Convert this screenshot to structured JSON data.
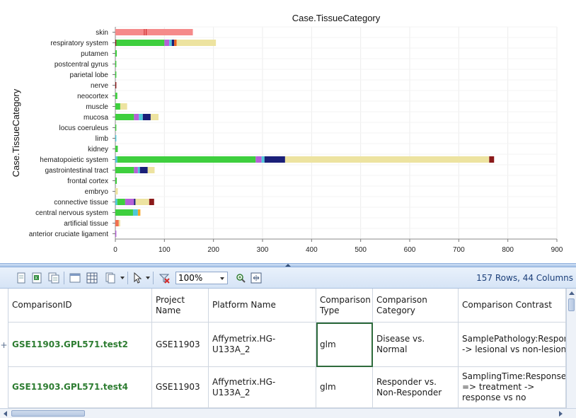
{
  "chart_data": {
    "type": "bar",
    "orientation": "horizontal",
    "stacked": true,
    "title": "Case.TissueCategory",
    "ylabel": "Case.TissueCategory",
    "xlabel": "",
    "xlim": [
      0,
      900
    ],
    "xticks": [
      0,
      100,
      200,
      300,
      400,
      500,
      600,
      700,
      800,
      900
    ],
    "grid": true,
    "legend": "none",
    "categories": [
      "skin",
      "respiratory system",
      "putamen",
      "postcentral gyrus",
      "parietal lobe",
      "nerve",
      "neocortex",
      "muscle",
      "mucosa",
      "locus coeruleus",
      "limb",
      "kidney",
      "hematopoietic system",
      "gastrointestinal tract",
      "frontal cortex",
      "embryo",
      "connective tissue",
      "central nervous system",
      "artificial tissue",
      "anterior cruciate ligament"
    ],
    "segments": [
      [
        {
          "v": 58,
          "c": "#f58a8a"
        },
        {
          "v": 2,
          "c": "#d23030"
        },
        {
          "v": 2,
          "c": "#f58a8a"
        },
        {
          "v": 2,
          "c": "#d23030"
        },
        {
          "v": 94,
          "c": "#f58a8a"
        }
      ],
      [
        {
          "v": 2,
          "c": "#8b1a1a"
        },
        {
          "v": 98,
          "c": "#3ecf3e"
        },
        {
          "v": 10,
          "c": "#b560d8"
        },
        {
          "v": 5,
          "c": "#4ec8d8"
        },
        {
          "v": 5,
          "c": "#1a1f78"
        },
        {
          "v": 5,
          "c": "#e8601c"
        },
        {
          "v": 80,
          "c": "#ede3a0"
        }
      ],
      [
        {
          "v": 3,
          "c": "#3ecf3e"
        }
      ],
      [
        {
          "v": 2,
          "c": "#3ecf3e"
        }
      ],
      [
        {
          "v": 2,
          "c": "#3ecf3e"
        }
      ],
      [
        {
          "v": 2,
          "c": "#8b1a1a"
        }
      ],
      [
        {
          "v": 4,
          "c": "#3ecf3e"
        }
      ],
      [
        {
          "v": 10,
          "c": "#3ecf3e"
        },
        {
          "v": 14,
          "c": "#ede3a0"
        }
      ],
      [
        {
          "v": 38,
          "c": "#3ecf3e"
        },
        {
          "v": 10,
          "c": "#b560d8"
        },
        {
          "v": 8,
          "c": "#4ec8d8"
        },
        {
          "v": 16,
          "c": "#1a1f78"
        },
        {
          "v": 16,
          "c": "#ede3a0"
        }
      ],
      [
        {
          "v": 2,
          "c": "#3ecf3e"
        }
      ],
      [
        {
          "v": 2,
          "c": "#4ec8d8"
        }
      ],
      [
        {
          "v": 5,
          "c": "#3ecf3e"
        }
      ],
      [
        {
          "v": 4,
          "c": "#4ec8d8"
        },
        {
          "v": 282,
          "c": "#3ecf3e"
        },
        {
          "v": 12,
          "c": "#b560d8"
        },
        {
          "v": 6,
          "c": "#4ec8d8"
        },
        {
          "v": 42,
          "c": "#1a1f78"
        },
        {
          "v": 416,
          "c": "#ede3a0"
        },
        {
          "v": 10,
          "c": "#8b1a1a"
        }
      ],
      [
        {
          "v": 38,
          "c": "#3ecf3e"
        },
        {
          "v": 8,
          "c": "#b560d8"
        },
        {
          "v": 4,
          "c": "#4ec8d8"
        },
        {
          "v": 16,
          "c": "#1a1f78"
        },
        {
          "v": 14,
          "c": "#ede3a0"
        }
      ],
      [
        {
          "v": 3,
          "c": "#3ecf3e"
        }
      ],
      [
        {
          "v": 5,
          "c": "#ede3a0"
        }
      ],
      [
        {
          "v": 4,
          "c": "#4ec8d8"
        },
        {
          "v": 16,
          "c": "#3ecf3e"
        },
        {
          "v": 18,
          "c": "#b560d8"
        },
        {
          "v": 3,
          "c": "#1a1f78"
        },
        {
          "v": 28,
          "c": "#ede3a0"
        },
        {
          "v": 10,
          "c": "#8b1a1a"
        }
      ],
      [
        {
          "v": 36,
          "c": "#3ecf3e"
        },
        {
          "v": 10,
          "c": "#4ec8d8"
        },
        {
          "v": 5,
          "c": "#f5a623"
        }
      ],
      [
        {
          "v": 7,
          "c": "#f07050"
        },
        {
          "v": 3,
          "c": "#ede3a0"
        }
      ],
      [
        {
          "v": 2,
          "c": "#b560d8"
        }
      ]
    ]
  },
  "toolbar": {
    "zoom_value": "100%",
    "rows_info": "157 Rows, 44 Columns"
  },
  "table": {
    "headers": [
      "ComparisonID",
      "Project Name",
      "Platform Name",
      "Comparison Type",
      "Comparison Category",
      "Comparison Contrast"
    ],
    "rows": [
      [
        "GSE11903.GPL571.test2",
        "GSE11903",
        "Affymetrix.HG-U133A_2",
        "glm",
        "Disease vs. Normal",
        "SamplePathology:Response -> lesional vs non-lesional"
      ],
      [
        "GSE11903.GPL571.test4",
        "GSE11903",
        "Affymetrix.HG-U133A_2",
        "glm",
        "Responder vs. Non-Responder",
        "SamplingTime:Response => treatment -> response vs no"
      ]
    ]
  }
}
